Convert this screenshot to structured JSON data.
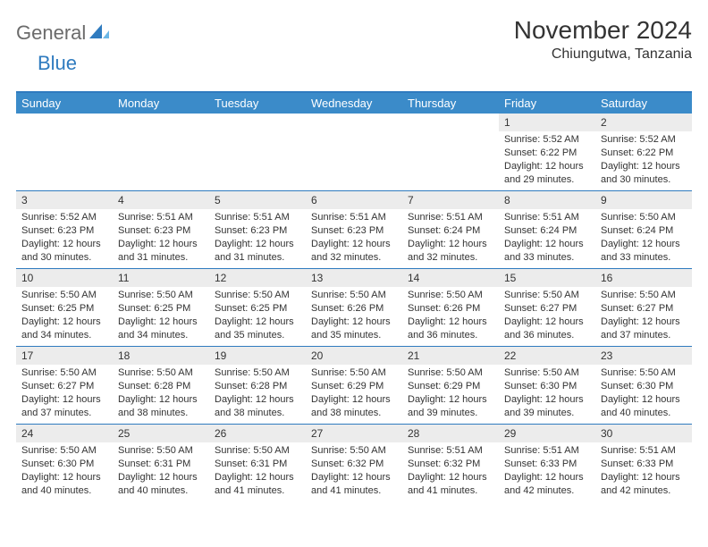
{
  "logo": {
    "text1": "General",
    "text2": "Blue"
  },
  "title": "November 2024",
  "location": "Chiungutwa, Tanzania",
  "colors": {
    "header_bar": "#3b8bc9",
    "border": "#2f7bbf",
    "daynum_bg": "#ececec",
    "text": "#333333",
    "logo_gray": "#6b6b6b",
    "logo_blue": "#2f7bbf",
    "background": "#ffffff"
  },
  "typography": {
    "title_fontsize": 28,
    "location_fontsize": 16,
    "dow_fontsize": 13,
    "cell_fontsize": 11
  },
  "days_of_week": [
    "Sunday",
    "Monday",
    "Tuesday",
    "Wednesday",
    "Thursday",
    "Friday",
    "Saturday"
  ],
  "weeks": [
    [
      null,
      null,
      null,
      null,
      null,
      {
        "n": "1",
        "sunrise": "Sunrise: 5:52 AM",
        "sunset": "Sunset: 6:22 PM",
        "daylight": "Daylight: 12 hours and 29 minutes."
      },
      {
        "n": "2",
        "sunrise": "Sunrise: 5:52 AM",
        "sunset": "Sunset: 6:22 PM",
        "daylight": "Daylight: 12 hours and 30 minutes."
      }
    ],
    [
      {
        "n": "3",
        "sunrise": "Sunrise: 5:52 AM",
        "sunset": "Sunset: 6:23 PM",
        "daylight": "Daylight: 12 hours and 30 minutes."
      },
      {
        "n": "4",
        "sunrise": "Sunrise: 5:51 AM",
        "sunset": "Sunset: 6:23 PM",
        "daylight": "Daylight: 12 hours and 31 minutes."
      },
      {
        "n": "5",
        "sunrise": "Sunrise: 5:51 AM",
        "sunset": "Sunset: 6:23 PM",
        "daylight": "Daylight: 12 hours and 31 minutes."
      },
      {
        "n": "6",
        "sunrise": "Sunrise: 5:51 AM",
        "sunset": "Sunset: 6:23 PM",
        "daylight": "Daylight: 12 hours and 32 minutes."
      },
      {
        "n": "7",
        "sunrise": "Sunrise: 5:51 AM",
        "sunset": "Sunset: 6:24 PM",
        "daylight": "Daylight: 12 hours and 32 minutes."
      },
      {
        "n": "8",
        "sunrise": "Sunrise: 5:51 AM",
        "sunset": "Sunset: 6:24 PM",
        "daylight": "Daylight: 12 hours and 33 minutes."
      },
      {
        "n": "9",
        "sunrise": "Sunrise: 5:50 AM",
        "sunset": "Sunset: 6:24 PM",
        "daylight": "Daylight: 12 hours and 33 minutes."
      }
    ],
    [
      {
        "n": "10",
        "sunrise": "Sunrise: 5:50 AM",
        "sunset": "Sunset: 6:25 PM",
        "daylight": "Daylight: 12 hours and 34 minutes."
      },
      {
        "n": "11",
        "sunrise": "Sunrise: 5:50 AM",
        "sunset": "Sunset: 6:25 PM",
        "daylight": "Daylight: 12 hours and 34 minutes."
      },
      {
        "n": "12",
        "sunrise": "Sunrise: 5:50 AM",
        "sunset": "Sunset: 6:25 PM",
        "daylight": "Daylight: 12 hours and 35 minutes."
      },
      {
        "n": "13",
        "sunrise": "Sunrise: 5:50 AM",
        "sunset": "Sunset: 6:26 PM",
        "daylight": "Daylight: 12 hours and 35 minutes."
      },
      {
        "n": "14",
        "sunrise": "Sunrise: 5:50 AM",
        "sunset": "Sunset: 6:26 PM",
        "daylight": "Daylight: 12 hours and 36 minutes."
      },
      {
        "n": "15",
        "sunrise": "Sunrise: 5:50 AM",
        "sunset": "Sunset: 6:27 PM",
        "daylight": "Daylight: 12 hours and 36 minutes."
      },
      {
        "n": "16",
        "sunrise": "Sunrise: 5:50 AM",
        "sunset": "Sunset: 6:27 PM",
        "daylight": "Daylight: 12 hours and 37 minutes."
      }
    ],
    [
      {
        "n": "17",
        "sunrise": "Sunrise: 5:50 AM",
        "sunset": "Sunset: 6:27 PM",
        "daylight": "Daylight: 12 hours and 37 minutes."
      },
      {
        "n": "18",
        "sunrise": "Sunrise: 5:50 AM",
        "sunset": "Sunset: 6:28 PM",
        "daylight": "Daylight: 12 hours and 38 minutes."
      },
      {
        "n": "19",
        "sunrise": "Sunrise: 5:50 AM",
        "sunset": "Sunset: 6:28 PM",
        "daylight": "Daylight: 12 hours and 38 minutes."
      },
      {
        "n": "20",
        "sunrise": "Sunrise: 5:50 AM",
        "sunset": "Sunset: 6:29 PM",
        "daylight": "Daylight: 12 hours and 38 minutes."
      },
      {
        "n": "21",
        "sunrise": "Sunrise: 5:50 AM",
        "sunset": "Sunset: 6:29 PM",
        "daylight": "Daylight: 12 hours and 39 minutes."
      },
      {
        "n": "22",
        "sunrise": "Sunrise: 5:50 AM",
        "sunset": "Sunset: 6:30 PM",
        "daylight": "Daylight: 12 hours and 39 minutes."
      },
      {
        "n": "23",
        "sunrise": "Sunrise: 5:50 AM",
        "sunset": "Sunset: 6:30 PM",
        "daylight": "Daylight: 12 hours and 40 minutes."
      }
    ],
    [
      {
        "n": "24",
        "sunrise": "Sunrise: 5:50 AM",
        "sunset": "Sunset: 6:30 PM",
        "daylight": "Daylight: 12 hours and 40 minutes."
      },
      {
        "n": "25",
        "sunrise": "Sunrise: 5:50 AM",
        "sunset": "Sunset: 6:31 PM",
        "daylight": "Daylight: 12 hours and 40 minutes."
      },
      {
        "n": "26",
        "sunrise": "Sunrise: 5:50 AM",
        "sunset": "Sunset: 6:31 PM",
        "daylight": "Daylight: 12 hours and 41 minutes."
      },
      {
        "n": "27",
        "sunrise": "Sunrise: 5:50 AM",
        "sunset": "Sunset: 6:32 PM",
        "daylight": "Daylight: 12 hours and 41 minutes."
      },
      {
        "n": "28",
        "sunrise": "Sunrise: 5:51 AM",
        "sunset": "Sunset: 6:32 PM",
        "daylight": "Daylight: 12 hours and 41 minutes."
      },
      {
        "n": "29",
        "sunrise": "Sunrise: 5:51 AM",
        "sunset": "Sunset: 6:33 PM",
        "daylight": "Daylight: 12 hours and 42 minutes."
      },
      {
        "n": "30",
        "sunrise": "Sunrise: 5:51 AM",
        "sunset": "Sunset: 6:33 PM",
        "daylight": "Daylight: 12 hours and 42 minutes."
      }
    ]
  ]
}
